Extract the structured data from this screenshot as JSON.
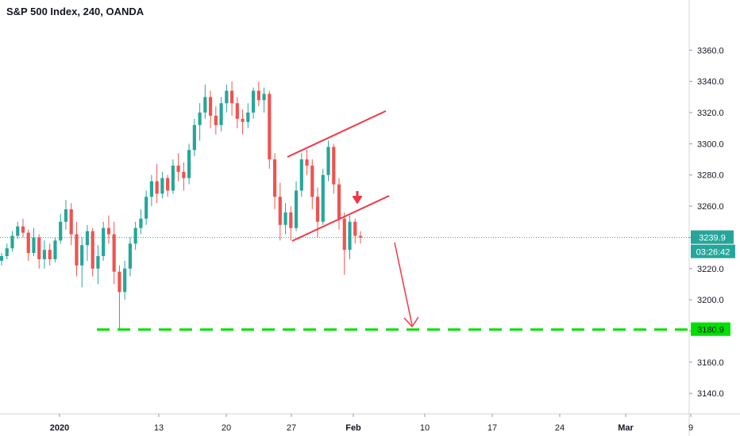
{
  "chart_data": {
    "type": "candlestick",
    "title": "S&P 500 Index, 240, OANDA",
    "x_tick_labels": [
      "2020",
      "13",
      "20",
      "27",
      "Feb",
      "10",
      "17",
      "24",
      "Mar",
      "9"
    ],
    "y_ticks": [
      3140,
      3160,
      3180,
      3200,
      3220,
      3240,
      3260,
      3280,
      3300,
      3320,
      3340,
      3360
    ],
    "y_tick_labels": [
      "3140.0",
      "3160.0",
      "3180.0",
      "3200.0",
      "3220.0",
      "3240.0",
      "3260.0",
      "3280.0",
      "3300.0",
      "3320.0",
      "3340.0",
      "3360.0"
    ],
    "ylim": [
      3134,
      3381
    ],
    "last_price": 3239.9,
    "last_price_label": "3239.9",
    "countdown_label": "03:26:42",
    "target_level": 3180.9,
    "target_level_label": "3180.9",
    "candles": [
      [
        3225,
        3230,
        3222,
        3228
      ],
      [
        3228,
        3236,
        3226,
        3233
      ],
      [
        3233,
        3244,
        3231,
        3241
      ],
      [
        3241,
        3250,
        3239,
        3247
      ],
      [
        3247,
        3252,
        3240,
        3243
      ],
      [
        3243,
        3245,
        3225,
        3230
      ],
      [
        3230,
        3246,
        3228,
        3240
      ],
      [
        3240,
        3242,
        3220,
        3226
      ],
      [
        3226,
        3238,
        3220,
        3232
      ],
      [
        3232,
        3236,
        3222,
        3226
      ],
      [
        3226,
        3240,
        3224,
        3238
      ],
      [
        3238,
        3255,
        3236,
        3250
      ],
      [
        3250,
        3264,
        3245,
        3258
      ],
      [
        3258,
        3262,
        3235,
        3242
      ],
      [
        3242,
        3250,
        3215,
        3222
      ],
      [
        3222,
        3240,
        3208,
        3235
      ],
      [
        3235,
        3248,
        3225,
        3244
      ],
      [
        3244,
        3246,
        3215,
        3220
      ],
      [
        3220,
        3235,
        3210,
        3228
      ],
      [
        3228,
        3250,
        3225,
        3246
      ],
      [
        3246,
        3254,
        3236,
        3242
      ],
      [
        3242,
        3250,
        3210,
        3218
      ],
      [
        3218,
        3222,
        3181,
        3205
      ],
      [
        3205,
        3225,
        3200,
        3220
      ],
      [
        3220,
        3240,
        3215,
        3236
      ],
      [
        3236,
        3250,
        3232,
        3246
      ],
      [
        3246,
        3258,
        3242,
        3252
      ],
      [
        3252,
        3270,
        3248,
        3266
      ],
      [
        3266,
        3280,
        3260,
        3276
      ],
      [
        3276,
        3287,
        3262,
        3268
      ],
      [
        3268,
        3282,
        3265,
        3278
      ],
      [
        3278,
        3280,
        3266,
        3270
      ],
      [
        3270,
        3290,
        3268,
        3286
      ],
      [
        3286,
        3294,
        3276,
        3282
      ],
      [
        3282,
        3288,
        3270,
        3278
      ],
      [
        3278,
        3300,
        3274,
        3296
      ],
      [
        3296,
        3316,
        3292,
        3312
      ],
      [
        3312,
        3326,
        3302,
        3320
      ],
      [
        3320,
        3338,
        3316,
        3330
      ],
      [
        3330,
        3334,
        3310,
        3318
      ],
      [
        3318,
        3324,
        3306,
        3312
      ],
      [
        3312,
        3330,
        3308,
        3326
      ],
      [
        3326,
        3338,
        3320,
        3334
      ],
      [
        3334,
        3340,
        3318,
        3326
      ],
      [
        3326,
        3330,
        3310,
        3316
      ],
      [
        3316,
        3322,
        3306,
        3314
      ],
      [
        3314,
        3326,
        3310,
        3320
      ],
      [
        3320,
        3336,
        3316,
        3334
      ],
      [
        3334,
        3340,
        3324,
        3328
      ],
      [
        3328,
        3336,
        3320,
        3332
      ],
      [
        3332,
        3334,
        3284,
        3290
      ],
      [
        3290,
        3294,
        3258,
        3266
      ],
      [
        3266,
        3275,
        3238,
        3248
      ],
      [
        3248,
        3262,
        3242,
        3256
      ],
      [
        3256,
        3260,
        3238,
        3246
      ],
      [
        3246,
        3276,
        3244,
        3270
      ],
      [
        3270,
        3294,
        3266,
        3290
      ],
      [
        3290,
        3296,
        3280,
        3286
      ],
      [
        3286,
        3290,
        3258,
        3266
      ],
      [
        3266,
        3272,
        3240,
        3250
      ],
      [
        3250,
        3284,
        3248,
        3280
      ],
      [
        3280,
        3302,
        3276,
        3298
      ],
      [
        3298,
        3300,
        3268,
        3274
      ],
      [
        3274,
        3278,
        3245,
        3252
      ],
      [
        3252,
        3256,
        3216,
        3232
      ],
      [
        3232,
        3254,
        3226,
        3250
      ],
      [
        3250,
        3252,
        3236,
        3241
      ],
      [
        3241,
        3244,
        3236,
        3239.9
      ]
    ]
  }
}
